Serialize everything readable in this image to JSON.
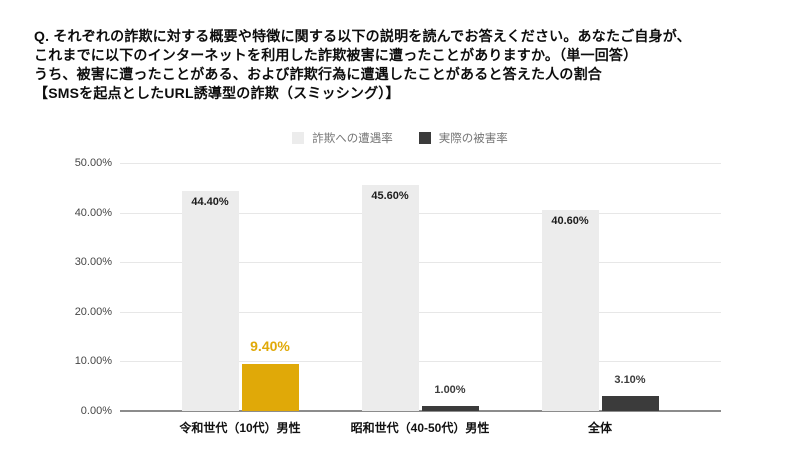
{
  "header": {
    "question_lines": [
      "Q. それぞれの詐欺に対する概要や特徴に関する以下の説明を読んでお答えください。あなたご自身が、",
      "これまでに以下のインターネットを利用した詐欺被害に遭ったことがありますか。（単一回答）",
      "うち、被害に遭ったことがある、および詐欺行為に遭遇したことがあると答えた人の割合",
      "【SMSを起点としたURL誘導型の詐欺（スミッシング）】"
    ]
  },
  "chart_data": {
    "type": "bar",
    "categories": [
      "令和世代（10代）男性",
      "昭和世代（40-50代）男性",
      "全体"
    ],
    "series": [
      {
        "name": "詐欺への遭遇率",
        "values": [
          44.4,
          45.6,
          40.6
        ],
        "labels": [
          "44.40%",
          "45.60%",
          "40.60%"
        ],
        "color": "#ECECEC",
        "label_placement": "inside"
      },
      {
        "name": "実際の被害率",
        "values": [
          9.4,
          1.0,
          3.1
        ],
        "labels": [
          "9.40%",
          "1.00%",
          "3.10%"
        ],
        "color": "#3B3B3B",
        "label_placement": "above"
      }
    ],
    "highlight": {
      "category_index": 0,
      "series_index": 1,
      "color": "#E0A908",
      "label_color": "#E0A908"
    },
    "y_axis": {
      "min": 0,
      "max": 50,
      "ticks": [
        {
          "label": "0.00%",
          "value": 0
        },
        {
          "label": "10.00%",
          "value": 10
        },
        {
          "label": "20.00%",
          "value": 20
        },
        {
          "label": "30.00%",
          "value": 30
        },
        {
          "label": "40.00%",
          "value": 40
        },
        {
          "label": "50.00%",
          "value": 50
        }
      ]
    },
    "legend": [
      {
        "label": "詐欺への遭遇率",
        "color": "#ECECEC"
      },
      {
        "label": "実際の被害率",
        "color": "#3B3B3B"
      }
    ],
    "grid": true,
    "legend_position": "top"
  }
}
